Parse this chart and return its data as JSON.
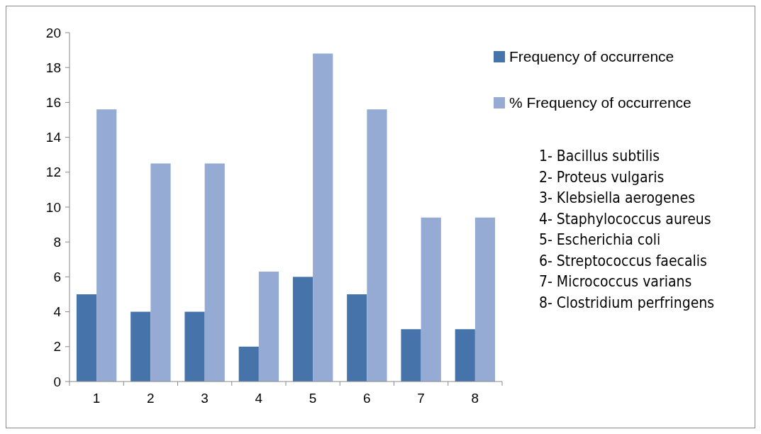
{
  "chart_data": {
    "type": "bar",
    "categories": [
      "1",
      "2",
      "3",
      "4",
      "5",
      "6",
      "7",
      "8"
    ],
    "series": [
      {
        "name": "Frequency of occurrence",
        "color": "#4674aa",
        "values": [
          5,
          4,
          4,
          2,
          6,
          5,
          3,
          3
        ]
      },
      {
        "name": "% Frequency of occurrence",
        "color": "#95abd4",
        "values": [
          15.6,
          12.5,
          12.5,
          6.3,
          18.8,
          15.6,
          9.4,
          9.4
        ]
      }
    ],
    "ylim": [
      0,
      20
    ],
    "yticks": [
      0,
      2,
      4,
      6,
      8,
      10,
      12,
      14,
      16,
      18,
      20
    ],
    "grid": false,
    "legend": "top right",
    "annotations": [
      "1- Bacillus subtilis",
      "2- Proteus vulgaris",
      "3- Klebsiella aerogenes",
      "4- Staphylococcus aureus",
      "5- Escherichia coli",
      "6- Streptococcus faecalis",
      "7- Micrococcus varians",
      "8- Clostridium perfringens"
    ]
  }
}
